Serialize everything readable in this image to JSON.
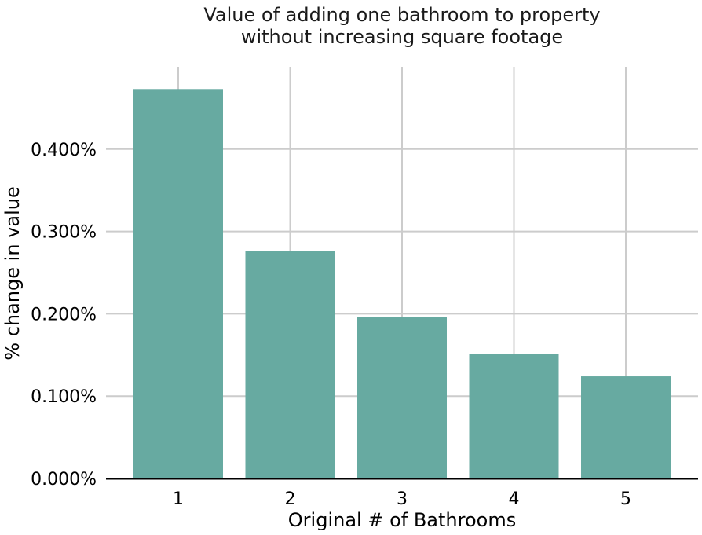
{
  "chart_data": {
    "type": "bar",
    "title_lines": [
      "Value of adding one bathroom to property",
      "without increasing square footage"
    ],
    "xlabel": "Original # of Bathrooms",
    "ylabel": "% change in value",
    "categories": [
      "1",
      "2",
      "3",
      "4",
      "5"
    ],
    "values": [
      0.473,
      0.276,
      0.196,
      0.151,
      0.124
    ],
    "ylim": [
      0,
      0.5
    ],
    "y_ticks": [
      0.0,
      0.1,
      0.2,
      0.3,
      0.4
    ],
    "y_tick_labels": [
      "0.000%",
      "0.100%",
      "0.200%",
      "0.300%",
      "0.400%"
    ],
    "bar_color": "#67aaa1",
    "grid": true,
    "legend": "none"
  }
}
